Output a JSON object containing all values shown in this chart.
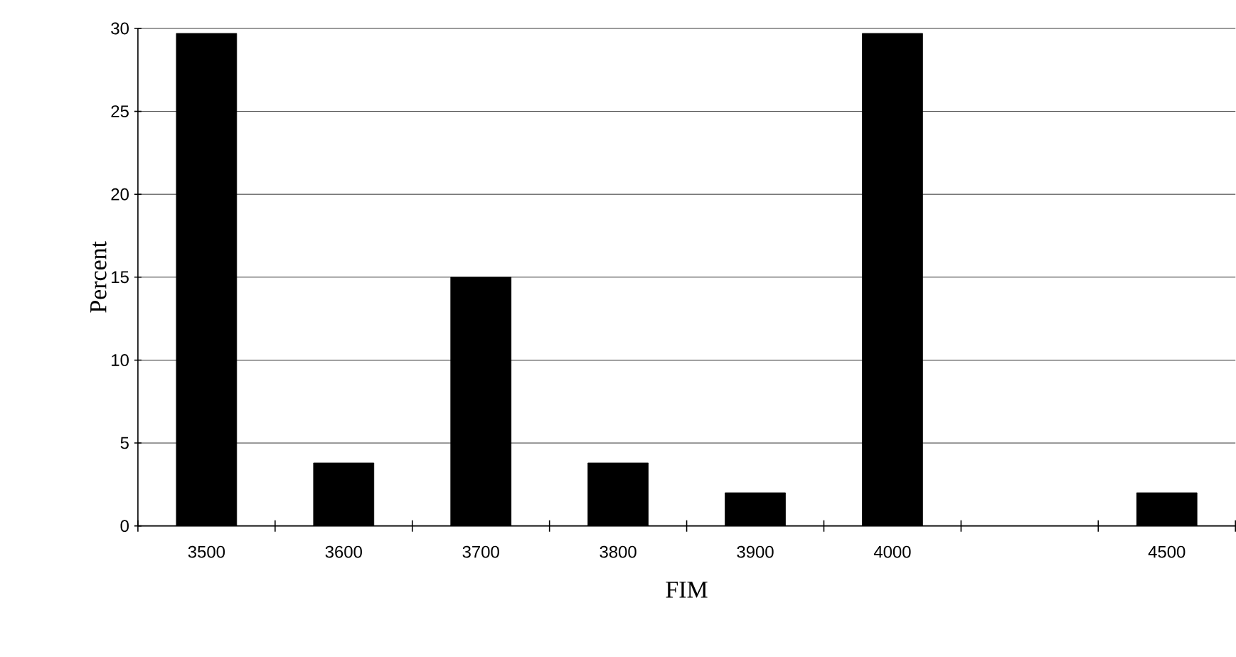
{
  "chart_data": {
    "type": "bar",
    "xlabel": "FIM",
    "ylabel": "Percent",
    "categories": [
      "3500",
      "3600",
      "3700",
      "3800",
      "3900",
      "4000",
      null,
      "4500"
    ],
    "values": [
      29.7,
      3.8,
      15,
      3.8,
      2,
      29.7,
      null,
      2
    ],
    "color": "#000000",
    "ylim": [
      0,
      30
    ],
    "yticks": [
      0,
      5,
      10,
      15,
      20,
      25,
      30
    ],
    "grid": "y"
  }
}
